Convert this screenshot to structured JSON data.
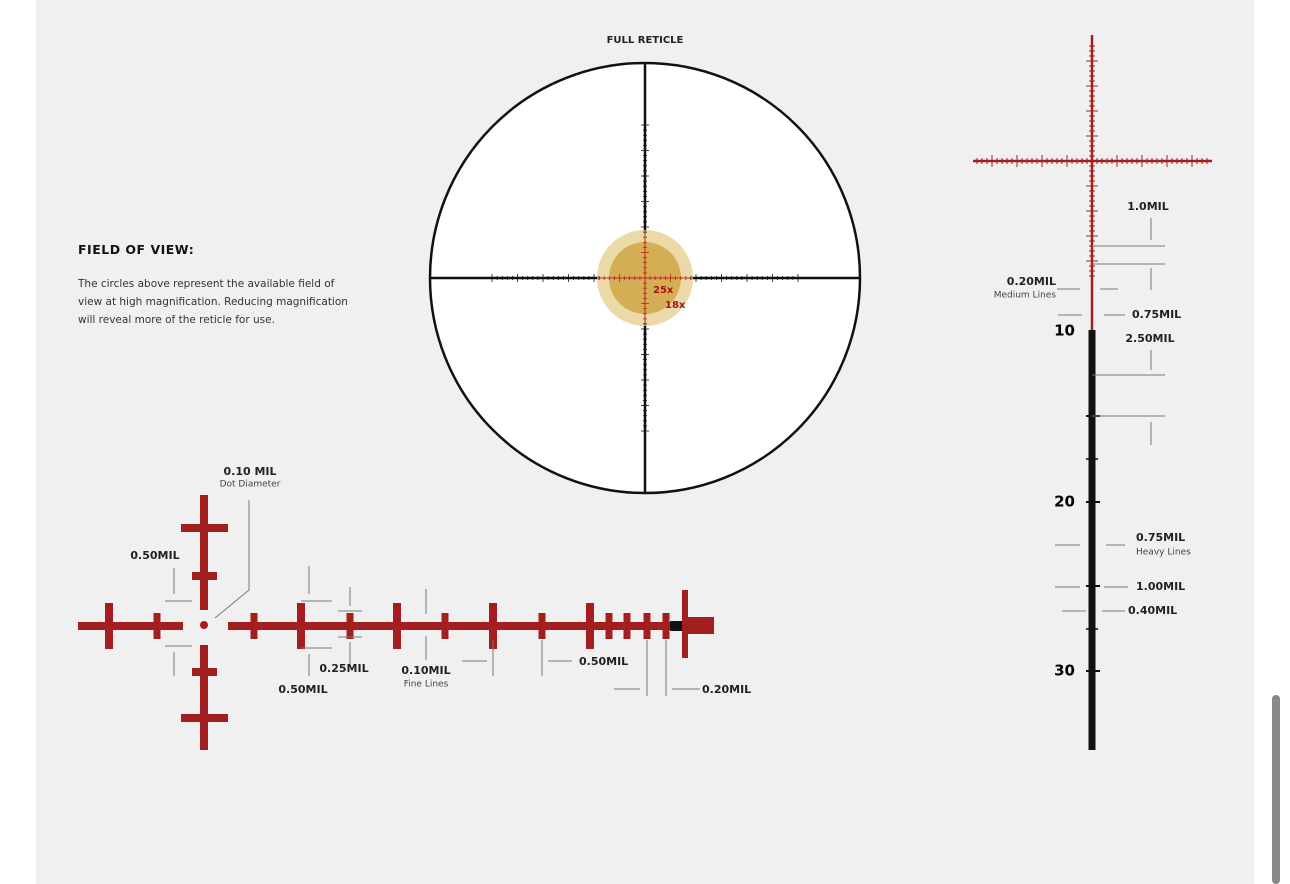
{
  "header": {
    "title": "FULL RETICLE"
  },
  "field_of_view": {
    "title": "FIELD OF VIEW:",
    "text": "The circles above represent the available field of view at high magnification. Reducing magnification will reveal more of the reticle for use."
  },
  "full_reticle": {
    "magnifications": [
      "25x",
      "18x"
    ]
  },
  "vertical_detail": {
    "scale": [
      "10",
      "20",
      "30"
    ],
    "callouts": [
      {
        "label": "1.0MIL"
      },
      {
        "label": "0.20MIL",
        "note": "Medium Lines"
      },
      {
        "label": "0.75MIL"
      },
      {
        "label": "2.50MIL"
      },
      {
        "label": "0.75MIL",
        "note": "Heavy Lines"
      },
      {
        "label": "1.00MIL"
      },
      {
        "label": "0.40MIL"
      }
    ]
  },
  "horizontal_detail": {
    "callouts": [
      {
        "label": "0.10 MIL",
        "note": "Dot Diameter"
      },
      {
        "label": "0.50MIL"
      },
      {
        "label": "0.50MIL"
      },
      {
        "label": "0.25MIL"
      },
      {
        "label": "0.10MIL",
        "note": "Fine Lines"
      },
      {
        "label": "0.50MIL"
      },
      {
        "label": "0.20MIL"
      }
    ]
  }
}
